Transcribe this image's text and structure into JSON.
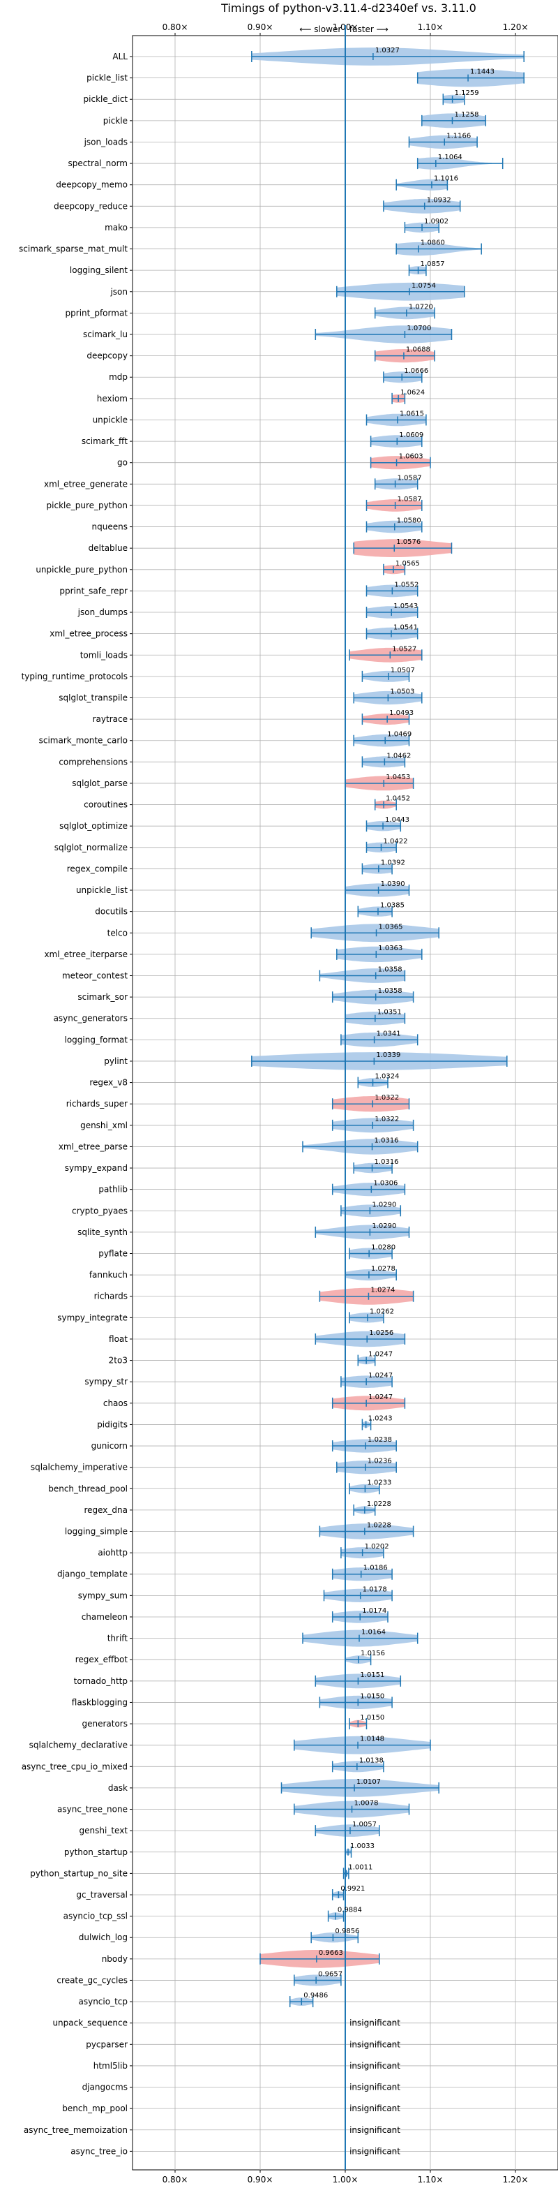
{
  "chart_data": {
    "type": "violin",
    "title": "Timings of python-v3.11.4-d2340ef vs. 3.11.0",
    "direction_label": "⟵ slower | faster ⟶",
    "xlim": [
      0.75,
      1.25
    ],
    "xticks": [
      0.8,
      0.9,
      1.0,
      1.1,
      1.2
    ],
    "xtick_labels": [
      "0.80×",
      "0.90×",
      "1.00×",
      "1.10×",
      "1.20×"
    ],
    "reference_line": 1.0,
    "grid": true,
    "colors": {
      "faster": "#a8c8e8",
      "slower": "#f4a9a8",
      "line": "#1f77b4",
      "grid": "#b0b0b0"
    },
    "insignificant_label": "insignificant",
    "benchmarks": [
      {
        "name": "ALL",
        "value": 1.0327,
        "lo": 0.89,
        "hi": 1.21,
        "spread": 0.1,
        "color": "faster",
        "label": "1.0327"
      },
      {
        "name": "pickle_list",
        "value": 1.1443,
        "lo": 1.085,
        "hi": 1.21,
        "spread": 0.065,
        "color": "faster",
        "label": "1.1443"
      },
      {
        "name": "pickle_dict",
        "value": 1.1259,
        "lo": 1.115,
        "hi": 1.14,
        "spread": 0.015,
        "color": "faster",
        "label": "1.1259"
      },
      {
        "name": "pickle",
        "value": 1.1258,
        "lo": 1.09,
        "hi": 1.165,
        "spread": 0.04,
        "color": "faster",
        "label": "1.1258"
      },
      {
        "name": "json_loads",
        "value": 1.1166,
        "lo": 1.075,
        "hi": 1.155,
        "spread": 0.035,
        "color": "faster",
        "label": "1.1166"
      },
      {
        "name": "spectral_norm",
        "value": 1.1064,
        "lo": 1.085,
        "hi": 1.185,
        "spread": 0.03,
        "color": "faster",
        "label": "1.1064"
      },
      {
        "name": "deepcopy_memo",
        "value": 1.1016,
        "lo": 1.06,
        "hi": 1.12,
        "spread": 0.025,
        "color": "faster",
        "label": "1.1016"
      },
      {
        "name": "deepcopy_reduce",
        "value": 1.0932,
        "lo": 1.045,
        "hi": 1.135,
        "spread": 0.04,
        "color": "faster",
        "label": "1.0932"
      },
      {
        "name": "mako",
        "value": 1.0902,
        "lo": 1.07,
        "hi": 1.11,
        "spread": 0.02,
        "color": "faster",
        "label": "1.0902"
      },
      {
        "name": "scimark_sparse_mat_mult",
        "value": 1.086,
        "lo": 1.06,
        "hi": 1.16,
        "spread": 0.035,
        "color": "faster",
        "label": "1.0860"
      },
      {
        "name": "logging_silent",
        "value": 1.0857,
        "lo": 1.075,
        "hi": 1.095,
        "spread": 0.012,
        "color": "faster",
        "label": "1.0857"
      },
      {
        "name": "json",
        "value": 1.0754,
        "lo": 0.99,
        "hi": 1.14,
        "spread": 0.07,
        "color": "faster",
        "label": "1.0754"
      },
      {
        "name": "pprint_pformat",
        "value": 1.072,
        "lo": 1.035,
        "hi": 1.105,
        "spread": 0.03,
        "color": "faster",
        "label": "1.0720"
      },
      {
        "name": "scimark_lu",
        "value": 1.07,
        "lo": 0.965,
        "hi": 1.125,
        "spread": 0.055,
        "color": "faster",
        "label": "1.0700"
      },
      {
        "name": "deepcopy",
        "value": 1.0688,
        "lo": 1.035,
        "hi": 1.105,
        "spread": 0.035,
        "color": "slower",
        "label": "1.0688"
      },
      {
        "name": "mdp",
        "value": 1.0666,
        "lo": 1.045,
        "hi": 1.09,
        "spread": 0.025,
        "color": "faster",
        "label": "1.0666"
      },
      {
        "name": "hexiom",
        "value": 1.0624,
        "lo": 1.055,
        "hi": 1.07,
        "spread": 0.012,
        "color": "slower",
        "label": "1.0624"
      },
      {
        "name": "unpickle",
        "value": 1.0615,
        "lo": 1.025,
        "hi": 1.095,
        "spread": 0.03,
        "color": "faster",
        "label": "1.0615"
      },
      {
        "name": "scimark_fft",
        "value": 1.0609,
        "lo": 1.03,
        "hi": 1.09,
        "spread": 0.03,
        "color": "faster",
        "label": "1.0609"
      },
      {
        "name": "go",
        "value": 1.0603,
        "lo": 1.03,
        "hi": 1.1,
        "spread": 0.035,
        "color": "slower",
        "label": "1.0603"
      },
      {
        "name": "xml_etree_generate",
        "value": 1.0587,
        "lo": 1.035,
        "hi": 1.085,
        "spread": 0.025,
        "color": "faster",
        "label": "1.0587"
      },
      {
        "name": "pickle_pure_python",
        "value": 1.0587,
        "lo": 1.025,
        "hi": 1.09,
        "spread": 0.03,
        "color": "slower",
        "label": "1.0587"
      },
      {
        "name": "nqueens",
        "value": 1.058,
        "lo": 1.025,
        "hi": 1.09,
        "spread": 0.03,
        "color": "faster",
        "label": "1.0580"
      },
      {
        "name": "deltablue",
        "value": 1.0576,
        "lo": 1.01,
        "hi": 1.125,
        "spread": 0.06,
        "color": "slower",
        "label": "1.0576"
      },
      {
        "name": "unpickle_pure_python",
        "value": 1.0565,
        "lo": 1.045,
        "hi": 1.07,
        "spread": 0.015,
        "color": "slower",
        "label": "1.0565"
      },
      {
        "name": "pprint_safe_repr",
        "value": 1.0552,
        "lo": 1.025,
        "hi": 1.085,
        "spread": 0.03,
        "color": "faster",
        "label": "1.0552"
      },
      {
        "name": "json_dumps",
        "value": 1.0543,
        "lo": 1.025,
        "hi": 1.085,
        "spread": 0.03,
        "color": "faster",
        "label": "1.0543"
      },
      {
        "name": "xml_etree_process",
        "value": 1.0541,
        "lo": 1.025,
        "hi": 1.085,
        "spread": 0.03,
        "color": "faster",
        "label": "1.0541"
      },
      {
        "name": "tomli_loads",
        "value": 1.0527,
        "lo": 1.005,
        "hi": 1.09,
        "spread": 0.04,
        "color": "slower",
        "label": "1.0527"
      },
      {
        "name": "typing_runtime_protocols",
        "value": 1.0507,
        "lo": 1.02,
        "hi": 1.075,
        "spread": 0.025,
        "color": "faster",
        "label": "1.0507"
      },
      {
        "name": "sqlglot_transpile",
        "value": 1.0503,
        "lo": 1.01,
        "hi": 1.09,
        "spread": 0.035,
        "color": "faster",
        "label": "1.0503"
      },
      {
        "name": "raytrace",
        "value": 1.0493,
        "lo": 1.02,
        "hi": 1.075,
        "spread": 0.025,
        "color": "slower",
        "label": "1.0493"
      },
      {
        "name": "scimark_monte_carlo",
        "value": 1.0469,
        "lo": 1.01,
        "hi": 1.075,
        "spread": 0.03,
        "color": "faster",
        "label": "1.0469"
      },
      {
        "name": "comprehensions",
        "value": 1.0462,
        "lo": 1.02,
        "hi": 1.07,
        "spread": 0.025,
        "color": "faster",
        "label": "1.0462"
      },
      {
        "name": "sqlglot_parse",
        "value": 1.0453,
        "lo": 1.0,
        "hi": 1.08,
        "spread": 0.04,
        "color": "slower",
        "label": "1.0453"
      },
      {
        "name": "coroutines",
        "value": 1.0452,
        "lo": 1.035,
        "hi": 1.06,
        "spread": 0.012,
        "color": "slower",
        "label": "1.0452"
      },
      {
        "name": "sqlglot_optimize",
        "value": 1.0443,
        "lo": 1.025,
        "hi": 1.065,
        "spread": 0.02,
        "color": "faster",
        "label": "1.0443"
      },
      {
        "name": "sqlglot_normalize",
        "value": 1.0422,
        "lo": 1.025,
        "hi": 1.06,
        "spread": 0.02,
        "color": "faster",
        "label": "1.0422"
      },
      {
        "name": "regex_compile",
        "value": 1.0392,
        "lo": 1.02,
        "hi": 1.055,
        "spread": 0.02,
        "color": "faster",
        "label": "1.0392"
      },
      {
        "name": "unpickle_list",
        "value": 1.039,
        "lo": 1.0,
        "hi": 1.075,
        "spread": 0.035,
        "color": "faster",
        "label": "1.0390"
      },
      {
        "name": "docutils",
        "value": 1.0385,
        "lo": 1.015,
        "hi": 1.055,
        "spread": 0.02,
        "color": "faster",
        "label": "1.0385"
      },
      {
        "name": "telco",
        "value": 1.0365,
        "lo": 0.96,
        "hi": 1.11,
        "spread": 0.06,
        "color": "faster",
        "label": "1.0365"
      },
      {
        "name": "xml_etree_iterparse",
        "value": 1.0363,
        "lo": 0.99,
        "hi": 1.09,
        "spread": 0.045,
        "color": "faster",
        "label": "1.0363"
      },
      {
        "name": "meteor_contest",
        "value": 1.0358,
        "lo": 0.97,
        "hi": 1.07,
        "spread": 0.04,
        "color": "faster",
        "label": "1.0358"
      },
      {
        "name": "scimark_sor",
        "value": 1.0358,
        "lo": 0.985,
        "hi": 1.08,
        "spread": 0.04,
        "color": "faster",
        "label": "1.0358"
      },
      {
        "name": "async_generators",
        "value": 1.0351,
        "lo": 1.0,
        "hi": 1.07,
        "spread": 0.035,
        "color": "faster",
        "label": "1.0351"
      },
      {
        "name": "logging_format",
        "value": 1.0341,
        "lo": 0.995,
        "hi": 1.085,
        "spread": 0.04,
        "color": "faster",
        "label": "1.0341"
      },
      {
        "name": "pylint",
        "value": 1.0339,
        "lo": 0.89,
        "hi": 1.19,
        "spread": 0.13,
        "color": "faster",
        "label": "1.0339"
      },
      {
        "name": "regex_v8",
        "value": 1.0324,
        "lo": 1.015,
        "hi": 1.05,
        "spread": 0.015,
        "color": "faster",
        "label": "1.0324"
      },
      {
        "name": "richards_super",
        "value": 1.0322,
        "lo": 0.985,
        "hi": 1.075,
        "spread": 0.045,
        "color": "slower",
        "label": "1.0322"
      },
      {
        "name": "genshi_xml",
        "value": 1.0322,
        "lo": 0.985,
        "hi": 1.08,
        "spread": 0.04,
        "color": "faster",
        "label": "1.0322"
      },
      {
        "name": "xml_etree_parse",
        "value": 1.0316,
        "lo": 0.95,
        "hi": 1.085,
        "spread": 0.045,
        "color": "faster",
        "label": "1.0316"
      },
      {
        "name": "sympy_expand",
        "value": 1.0316,
        "lo": 1.01,
        "hi": 1.055,
        "spread": 0.02,
        "color": "faster",
        "label": "1.0316"
      },
      {
        "name": "pathlib",
        "value": 1.0306,
        "lo": 0.985,
        "hi": 1.07,
        "spread": 0.035,
        "color": "faster",
        "label": "1.0306"
      },
      {
        "name": "crypto_pyaes",
        "value": 1.029,
        "lo": 0.995,
        "hi": 1.065,
        "spread": 0.03,
        "color": "faster",
        "label": "1.0290"
      },
      {
        "name": "sqlite_synth",
        "value": 1.029,
        "lo": 0.965,
        "hi": 1.075,
        "spread": 0.04,
        "color": "faster",
        "label": "1.0290"
      },
      {
        "name": "pyflate",
        "value": 1.028,
        "lo": 1.005,
        "hi": 1.055,
        "spread": 0.025,
        "color": "faster",
        "label": "1.0280"
      },
      {
        "name": "fannkuch",
        "value": 1.0278,
        "lo": 1.0,
        "hi": 1.06,
        "spread": 0.025,
        "color": "faster",
        "label": "1.0278"
      },
      {
        "name": "richards",
        "value": 1.0274,
        "lo": 0.97,
        "hi": 1.08,
        "spread": 0.05,
        "color": "slower",
        "label": "1.0274"
      },
      {
        "name": "sympy_integrate",
        "value": 1.0262,
        "lo": 1.005,
        "hi": 1.045,
        "spread": 0.02,
        "color": "faster",
        "label": "1.0262"
      },
      {
        "name": "float",
        "value": 1.0256,
        "lo": 0.965,
        "hi": 1.07,
        "spread": 0.045,
        "color": "faster",
        "label": "1.0256"
      },
      {
        "name": "2to3",
        "value": 1.0247,
        "lo": 1.015,
        "hi": 1.035,
        "spread": 0.01,
        "color": "faster",
        "label": "1.0247"
      },
      {
        "name": "sympy_str",
        "value": 1.0247,
        "lo": 0.995,
        "hi": 1.055,
        "spread": 0.03,
        "color": "faster",
        "label": "1.0247"
      },
      {
        "name": "chaos",
        "value": 1.0247,
        "lo": 0.985,
        "hi": 1.07,
        "spread": 0.04,
        "color": "slower",
        "label": "1.0247"
      },
      {
        "name": "pidigits",
        "value": 1.0243,
        "lo": 1.02,
        "hi": 1.03,
        "spread": 0.004,
        "color": "faster",
        "label": "1.0243"
      },
      {
        "name": "gunicorn",
        "value": 1.0238,
        "lo": 0.985,
        "hi": 1.06,
        "spread": 0.035,
        "color": "faster",
        "label": "1.0238"
      },
      {
        "name": "sqlalchemy_imperative",
        "value": 1.0236,
        "lo": 0.99,
        "hi": 1.06,
        "spread": 0.035,
        "color": "faster",
        "label": "1.0236"
      },
      {
        "name": "bench_thread_pool",
        "value": 1.0233,
        "lo": 1.005,
        "hi": 1.04,
        "spread": 0.015,
        "color": "faster",
        "label": "1.0233"
      },
      {
        "name": "regex_dna",
        "value": 1.0228,
        "lo": 1.01,
        "hi": 1.035,
        "spread": 0.01,
        "color": "faster",
        "label": "1.0228"
      },
      {
        "name": "logging_simple",
        "value": 1.0228,
        "lo": 0.97,
        "hi": 1.08,
        "spread": 0.045,
        "color": "faster",
        "label": "1.0228"
      },
      {
        "name": "aiohttp",
        "value": 1.0202,
        "lo": 0.995,
        "hi": 1.045,
        "spread": 0.025,
        "color": "faster",
        "label": "1.0202"
      },
      {
        "name": "django_template",
        "value": 1.0186,
        "lo": 0.985,
        "hi": 1.055,
        "spread": 0.035,
        "color": "faster",
        "label": "1.0186"
      },
      {
        "name": "sympy_sum",
        "value": 1.0178,
        "lo": 0.975,
        "hi": 1.055,
        "spread": 0.035,
        "color": "faster",
        "label": "1.0178"
      },
      {
        "name": "chameleon",
        "value": 1.0174,
        "lo": 0.985,
        "hi": 1.05,
        "spread": 0.03,
        "color": "faster",
        "label": "1.0174"
      },
      {
        "name": "thrift",
        "value": 1.0164,
        "lo": 0.95,
        "hi": 1.085,
        "spread": 0.05,
        "color": "faster",
        "label": "1.0164"
      },
      {
        "name": "regex_effbot",
        "value": 1.0156,
        "lo": 1.0,
        "hi": 1.03,
        "spread": 0.012,
        "color": "faster",
        "label": "1.0156"
      },
      {
        "name": "tornado_http",
        "value": 1.0151,
        "lo": 0.965,
        "hi": 1.065,
        "spread": 0.04,
        "color": "faster",
        "label": "1.0151"
      },
      {
        "name": "flaskblogging",
        "value": 1.015,
        "lo": 0.97,
        "hi": 1.055,
        "spread": 0.035,
        "color": "faster",
        "label": "1.0150"
      },
      {
        "name": "generators",
        "value": 1.015,
        "lo": 1.005,
        "hi": 1.025,
        "spread": 0.008,
        "color": "slower",
        "label": "1.0150"
      },
      {
        "name": "sqlalchemy_declarative",
        "value": 1.0148,
        "lo": 0.94,
        "hi": 1.1,
        "spread": 0.06,
        "color": "faster",
        "label": "1.0148"
      },
      {
        "name": "async_tree_cpu_io_mixed",
        "value": 1.0138,
        "lo": 0.985,
        "hi": 1.045,
        "spread": 0.025,
        "color": "faster",
        "label": "1.0138"
      },
      {
        "name": "dask",
        "value": 1.0107,
        "lo": 0.925,
        "hi": 1.11,
        "spread": 0.065,
        "color": "faster",
        "label": "1.0107"
      },
      {
        "name": "async_tree_none",
        "value": 1.0078,
        "lo": 0.94,
        "hi": 1.075,
        "spread": 0.05,
        "color": "faster",
        "label": "1.0078"
      },
      {
        "name": "genshi_text",
        "value": 1.0057,
        "lo": 0.965,
        "hi": 1.04,
        "spread": 0.03,
        "color": "faster",
        "label": "1.0057"
      },
      {
        "name": "python_startup",
        "value": 1.0033,
        "lo": 1.0,
        "hi": 1.007,
        "spread": 0.003,
        "color": "faster",
        "label": "1.0033"
      },
      {
        "name": "python_startup_no_site",
        "value": 1.0011,
        "lo": 0.998,
        "hi": 1.004,
        "spread": 0.002,
        "color": "faster",
        "label": "1.0011"
      },
      {
        "name": "gc_traversal",
        "value": 0.9921,
        "lo": 0.985,
        "hi": 0.998,
        "spread": 0.006,
        "color": "faster",
        "label": "0.9921"
      },
      {
        "name": "asyncio_tcp_ssl",
        "value": 0.9884,
        "lo": 0.98,
        "hi": 0.998,
        "spread": 0.008,
        "color": "faster",
        "label": "0.9884"
      },
      {
        "name": "dulwich_log",
        "value": 0.9856,
        "lo": 0.96,
        "hi": 1.015,
        "spread": 0.02,
        "color": "faster",
        "label": "0.9856"
      },
      {
        "name": "nbody",
        "value": 0.9663,
        "lo": 0.9,
        "hi": 1.04,
        "spread": 0.06,
        "color": "slower",
        "label": "0.9663"
      },
      {
        "name": "create_gc_cycles",
        "value": 0.9657,
        "lo": 0.94,
        "hi": 0.995,
        "spread": 0.025,
        "color": "faster",
        "label": "0.9657"
      },
      {
        "name": "asyncio_tcp",
        "value": 0.9486,
        "lo": 0.935,
        "hi": 0.962,
        "spread": 0.012,
        "color": "faster",
        "label": "0.9486"
      },
      {
        "name": "unpack_sequence",
        "insignificant": true
      },
      {
        "name": "pycparser",
        "insignificant": true
      },
      {
        "name": "html5lib",
        "insignificant": true
      },
      {
        "name": "djangocms",
        "insignificant": true
      },
      {
        "name": "bench_mp_pool",
        "insignificant": true
      },
      {
        "name": "async_tree_memoization",
        "insignificant": true
      },
      {
        "name": "async_tree_io",
        "insignificant": true
      }
    ]
  }
}
